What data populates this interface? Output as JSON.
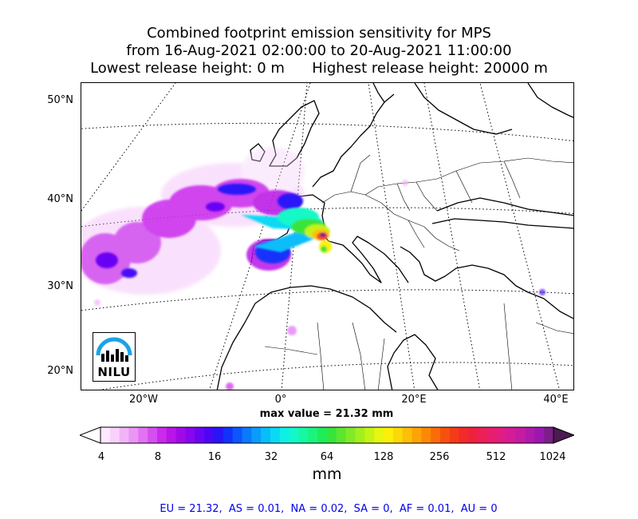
{
  "title": {
    "line1": "Combined footprint emission sensitivity for MPS",
    "line2": "from 16-Aug-2021 02:00:00 to 20-Aug-2021 11:00:00",
    "line3": "Lowest release height: 0 m      Highest release height: 20000 m"
  },
  "map": {
    "lat_labels": [
      "50°N",
      "40°N",
      "30°N",
      "20°N"
    ],
    "lon_labels": [
      "20°W",
      "0°",
      "20°E",
      "40°E"
    ],
    "logo_text": "NILU"
  },
  "max_value_text": "max value = 21.32 mm",
  "colorbar": {
    "tick_labels": [
      "4",
      "8",
      "16",
      "32",
      "64",
      "128",
      "256",
      "512",
      "1024"
    ],
    "unit": "mm",
    "colors": [
      "#fde8fd",
      "#f9d1fb",
      "#f2b4f8",
      "#eb95f5",
      "#e272f3",
      "#d74ef0",
      "#c92aec",
      "#b914e8",
      "#a10ae6",
      "#8706ef",
      "#6a05f3",
      "#4a07f5",
      "#2a14f8",
      "#1232fb",
      "#0d55fd",
      "#0a79fd",
      "#099cfc",
      "#08bdfa",
      "#0ad9f3",
      "#0ef0e6",
      "#12f8c8",
      "#16f8a2",
      "#1af47c",
      "#1eec58",
      "#38e43a",
      "#5ce62e",
      "#80ea26",
      "#a3ef1e",
      "#c6f316",
      "#e6f60f",
      "#fbf00a",
      "#fdd808",
      "#fdbf07",
      "#fda406",
      "#fc8906",
      "#fa6c08",
      "#f7500d",
      "#f53a18",
      "#f32a2a",
      "#f0213f",
      "#ec1f56",
      "#e71e6d",
      "#df1d83",
      "#d41c95",
      "#c51ba3",
      "#b01aac",
      "#9a18b0",
      "#7c1f8a"
    ]
  },
  "region_stats": "EU = 21.32,  AS = 0.01,  NA = 0.02,  SA = 0,  AF = 0.01,  AU = 0"
}
